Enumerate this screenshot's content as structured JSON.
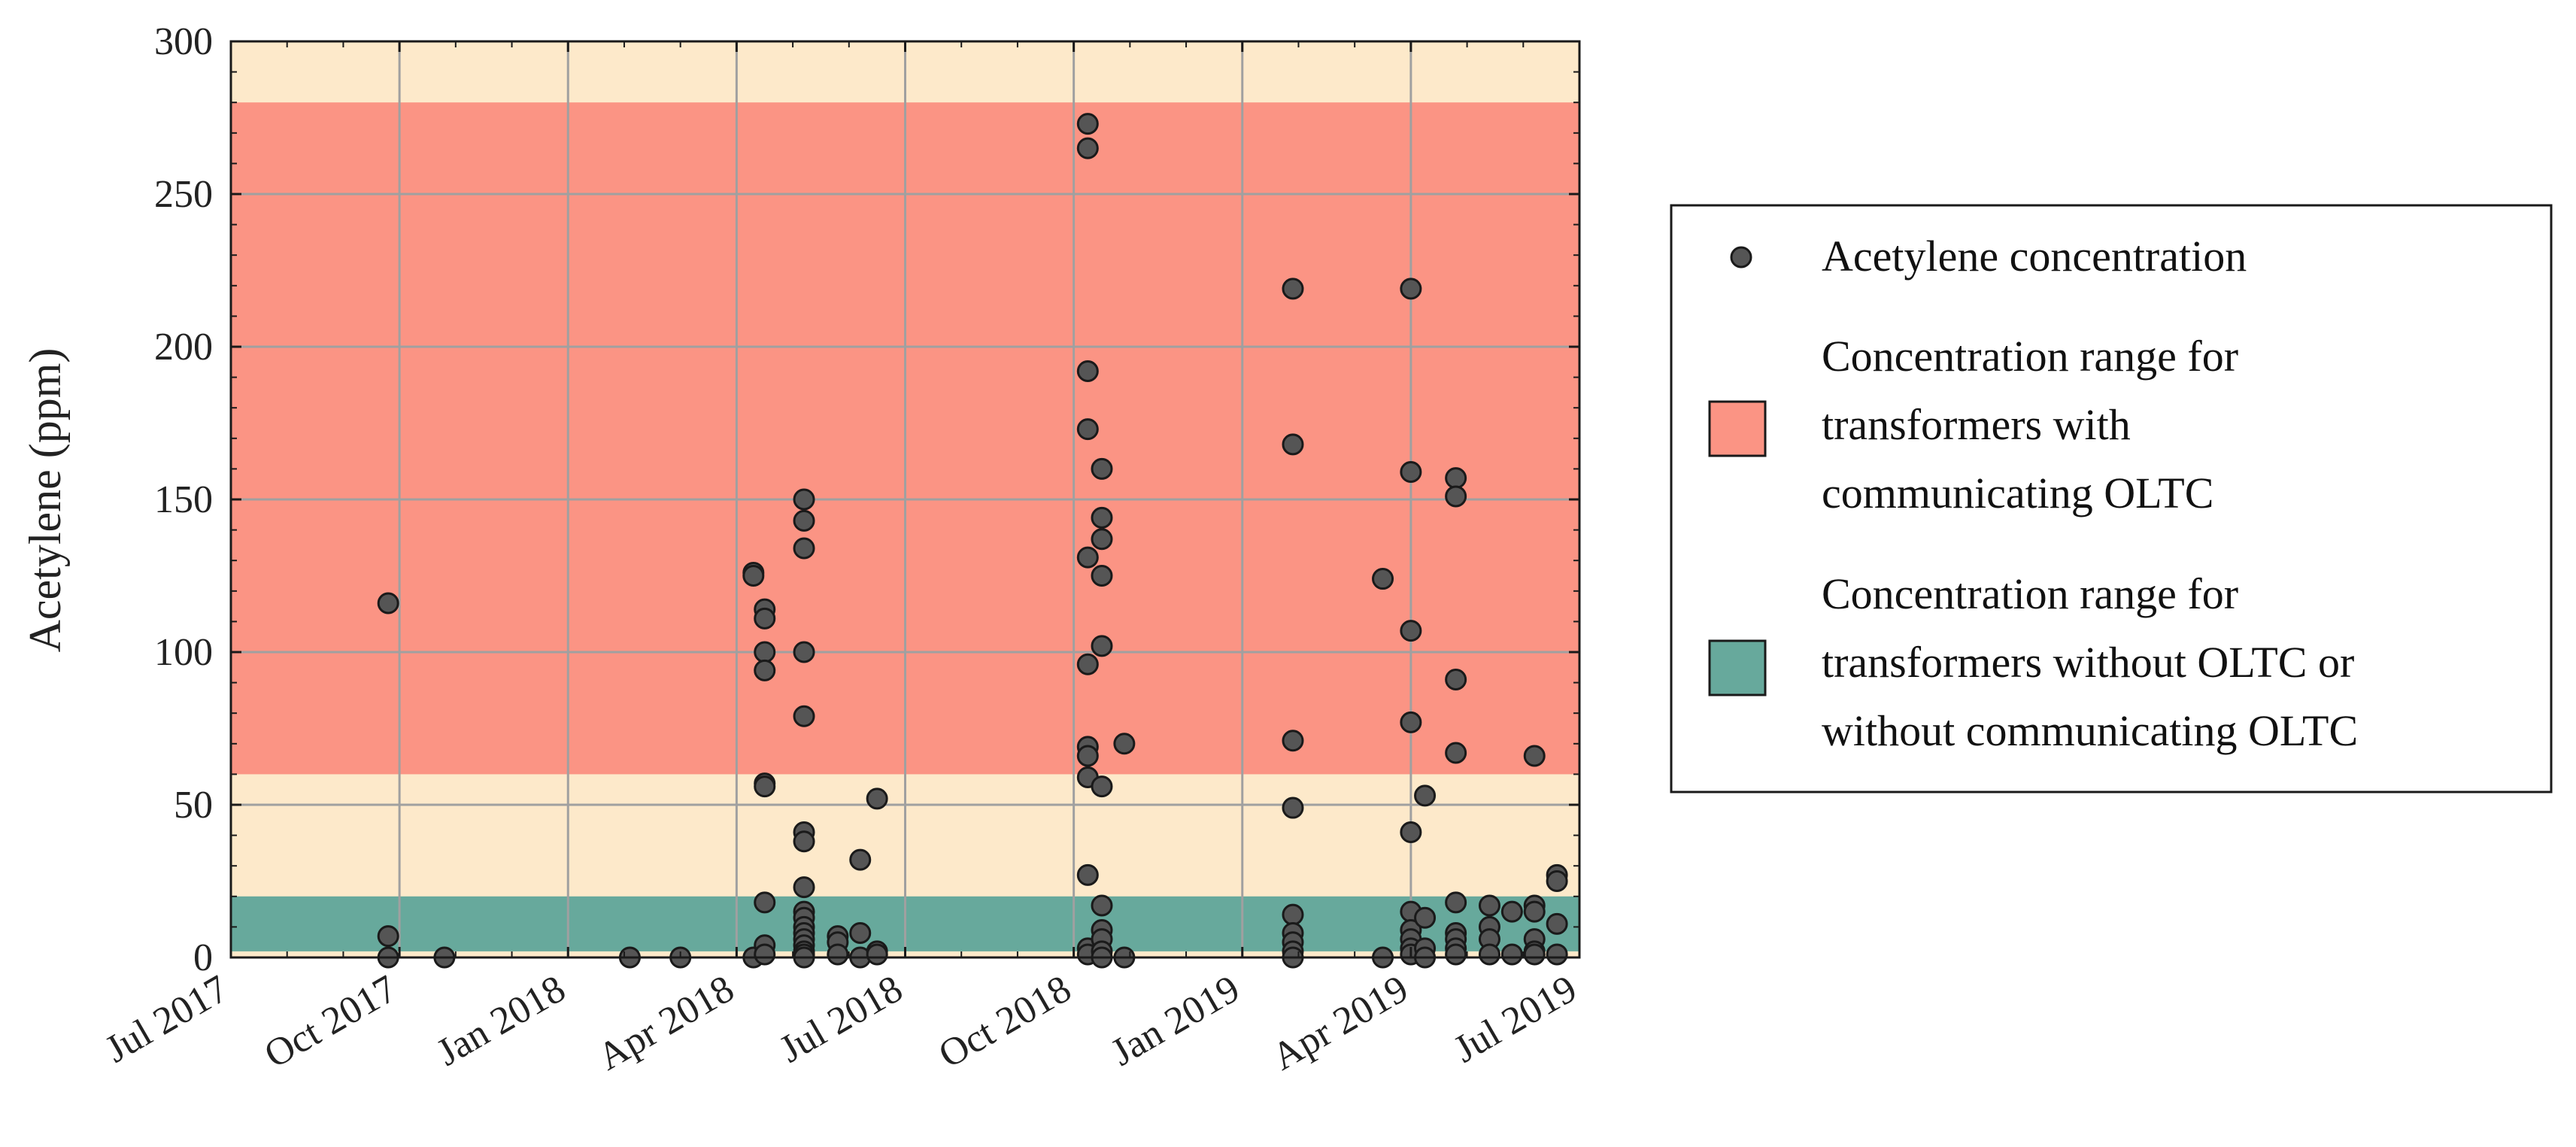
{
  "chart_data": {
    "type": "scatter",
    "title": "",
    "xlabel": "",
    "ylabel": "Acetylene (ppm)",
    "ylim": [
      0,
      300
    ],
    "yticks": [
      0,
      50,
      100,
      150,
      200,
      250,
      300
    ],
    "xlim_months": [
      0,
      24
    ],
    "xticks": [
      {
        "label": "Jul 2017",
        "month": 0
      },
      {
        "label": "Oct 2017",
        "month": 3
      },
      {
        "label": "Jan 2018",
        "month": 6
      },
      {
        "label": "Apr 2018",
        "month": 9
      },
      {
        "label": "Jul 2018",
        "month": 12
      },
      {
        "label": "Oct 2018",
        "month": 15
      },
      {
        "label": "Jan 2019",
        "month": 18
      },
      {
        "label": "Apr 2019",
        "month": 21
      },
      {
        "label": "Jul 2019",
        "month": 24
      }
    ],
    "grid": true,
    "legend_position": "right-outside",
    "bands": [
      {
        "name": "Concentration range for transformers with communicating OLTC",
        "y_from": 60,
        "y_to": 280,
        "color": "#fb9484",
        "legend": true
      },
      {
        "name": "Concentration range for transformers without OLTC or without communicating OLTC",
        "y_from": 2,
        "y_to": 20,
        "color": "#67a99c",
        "legend": true
      },
      {
        "name": "background",
        "y_from": 0,
        "y_to": 300,
        "color": "#fde9ca",
        "legend": false
      }
    ],
    "series": [
      {
        "name": "Acetylene concentration",
        "color": "#555555",
        "edge_color": "#1a1a1a",
        "points": [
          {
            "x_months": 2.8,
            "y": 116
          },
          {
            "x_months": 2.8,
            "y": 7
          },
          {
            "x_months": 2.8,
            "y": 0
          },
          {
            "x_months": 3.8,
            "y": 0
          },
          {
            "x_months": 7.1,
            "y": 0
          },
          {
            "x_months": 8.0,
            "y": 0
          },
          {
            "x_months": 9.3,
            "y": 126
          },
          {
            "x_months": 9.3,
            "y": 125
          },
          {
            "x_months": 9.3,
            "y": 0
          },
          {
            "x_months": 9.5,
            "y": 114
          },
          {
            "x_months": 9.5,
            "y": 111
          },
          {
            "x_months": 9.5,
            "y": 100
          },
          {
            "x_months": 9.5,
            "y": 94
          },
          {
            "x_months": 9.5,
            "y": 57
          },
          {
            "x_months": 9.5,
            "y": 56
          },
          {
            "x_months": 9.5,
            "y": 18
          },
          {
            "x_months": 9.5,
            "y": 4
          },
          {
            "x_months": 9.5,
            "y": 1
          },
          {
            "x_months": 10.2,
            "y": 150
          },
          {
            "x_months": 10.2,
            "y": 143
          },
          {
            "x_months": 10.2,
            "y": 134
          },
          {
            "x_months": 10.2,
            "y": 100
          },
          {
            "x_months": 10.2,
            "y": 79
          },
          {
            "x_months": 10.2,
            "y": 41
          },
          {
            "x_months": 10.2,
            "y": 38
          },
          {
            "x_months": 10.2,
            "y": 23
          },
          {
            "x_months": 10.2,
            "y": 15
          },
          {
            "x_months": 10.2,
            "y": 13
          },
          {
            "x_months": 10.2,
            "y": 10
          },
          {
            "x_months": 10.2,
            "y": 8
          },
          {
            "x_months": 10.2,
            "y": 6
          },
          {
            "x_months": 10.2,
            "y": 4
          },
          {
            "x_months": 10.2,
            "y": 2
          },
          {
            "x_months": 10.2,
            "y": 1
          },
          {
            "x_months": 10.2,
            "y": 0
          },
          {
            "x_months": 10.8,
            "y": 7
          },
          {
            "x_months": 10.8,
            "y": 5
          },
          {
            "x_months": 10.8,
            "y": 1
          },
          {
            "x_months": 11.2,
            "y": 32
          },
          {
            "x_months": 11.2,
            "y": 8
          },
          {
            "x_months": 11.2,
            "y": 0
          },
          {
            "x_months": 11.5,
            "y": 52
          },
          {
            "x_months": 11.5,
            "y": 2
          },
          {
            "x_months": 11.5,
            "y": 1
          },
          {
            "x_months": 15.25,
            "y": 273
          },
          {
            "x_months": 15.25,
            "y": 265
          },
          {
            "x_months": 15.25,
            "y": 192
          },
          {
            "x_months": 15.25,
            "y": 173
          },
          {
            "x_months": 15.25,
            "y": 131
          },
          {
            "x_months": 15.25,
            "y": 96
          },
          {
            "x_months": 15.25,
            "y": 69
          },
          {
            "x_months": 15.25,
            "y": 66
          },
          {
            "x_months": 15.25,
            "y": 59
          },
          {
            "x_months": 15.25,
            "y": 27
          },
          {
            "x_months": 15.25,
            "y": 3
          },
          {
            "x_months": 15.25,
            "y": 1
          },
          {
            "x_months": 15.5,
            "y": 160
          },
          {
            "x_months": 15.5,
            "y": 144
          },
          {
            "x_months": 15.5,
            "y": 137
          },
          {
            "x_months": 15.5,
            "y": 125
          },
          {
            "x_months": 15.5,
            "y": 102
          },
          {
            "x_months": 15.5,
            "y": 56
          },
          {
            "x_months": 15.5,
            "y": 17
          },
          {
            "x_months": 15.5,
            "y": 9
          },
          {
            "x_months": 15.5,
            "y": 6
          },
          {
            "x_months": 15.5,
            "y": 2
          },
          {
            "x_months": 15.5,
            "y": 0
          },
          {
            "x_months": 15.9,
            "y": 70
          },
          {
            "x_months": 15.9,
            "y": 0
          },
          {
            "x_months": 18.9,
            "y": 219
          },
          {
            "x_months": 18.9,
            "y": 168
          },
          {
            "x_months": 18.9,
            "y": 71
          },
          {
            "x_months": 18.9,
            "y": 49
          },
          {
            "x_months": 18.9,
            "y": 14
          },
          {
            "x_months": 18.9,
            "y": 8
          },
          {
            "x_months": 18.9,
            "y": 5
          },
          {
            "x_months": 18.9,
            "y": 2
          },
          {
            "x_months": 18.9,
            "y": 0
          },
          {
            "x_months": 20.5,
            "y": 124
          },
          {
            "x_months": 20.5,
            "y": 0
          },
          {
            "x_months": 21.0,
            "y": 219
          },
          {
            "x_months": 21.0,
            "y": 159
          },
          {
            "x_months": 21.0,
            "y": 107
          },
          {
            "x_months": 21.0,
            "y": 77
          },
          {
            "x_months": 21.0,
            "y": 41
          },
          {
            "x_months": 21.0,
            "y": 15
          },
          {
            "x_months": 21.0,
            "y": 9
          },
          {
            "x_months": 21.0,
            "y": 6
          },
          {
            "x_months": 21.0,
            "y": 3
          },
          {
            "x_months": 21.0,
            "y": 1
          },
          {
            "x_months": 21.25,
            "y": 53
          },
          {
            "x_months": 21.25,
            "y": 13
          },
          {
            "x_months": 21.25,
            "y": 3
          },
          {
            "x_months": 21.25,
            "y": 0
          },
          {
            "x_months": 21.8,
            "y": 157
          },
          {
            "x_months": 21.8,
            "y": 151
          },
          {
            "x_months": 21.8,
            "y": 91
          },
          {
            "x_months": 21.8,
            "y": 67
          },
          {
            "x_months": 21.8,
            "y": 18
          },
          {
            "x_months": 21.8,
            "y": 8
          },
          {
            "x_months": 21.8,
            "y": 6
          },
          {
            "x_months": 21.8,
            "y": 3
          },
          {
            "x_months": 21.8,
            "y": 1
          },
          {
            "x_months": 22.4,
            "y": 17
          },
          {
            "x_months": 22.4,
            "y": 10
          },
          {
            "x_months": 22.4,
            "y": 6
          },
          {
            "x_months": 22.4,
            "y": 1
          },
          {
            "x_months": 22.8,
            "y": 15
          },
          {
            "x_months": 22.8,
            "y": 1
          },
          {
            "x_months": 23.2,
            "y": 66
          },
          {
            "x_months": 23.2,
            "y": 17
          },
          {
            "x_months": 23.2,
            "y": 15
          },
          {
            "x_months": 23.2,
            "y": 6
          },
          {
            "x_months": 23.2,
            "y": 2
          },
          {
            "x_months": 23.2,
            "y": 1
          },
          {
            "x_months": 23.6,
            "y": 27
          },
          {
            "x_months": 23.6,
            "y": 25
          },
          {
            "x_months": 23.6,
            "y": 11
          },
          {
            "x_months": 23.6,
            "y": 1
          }
        ]
      }
    ],
    "legend": {
      "marker_label": "Acetylene concentration",
      "band1_lines": [
        "Concentration range for",
        "transformers with",
        "communicating OLTC"
      ],
      "band2_lines": [
        "Concentration range for",
        "transformers without OLTC or",
        "without communicating OLTC"
      ]
    }
  }
}
